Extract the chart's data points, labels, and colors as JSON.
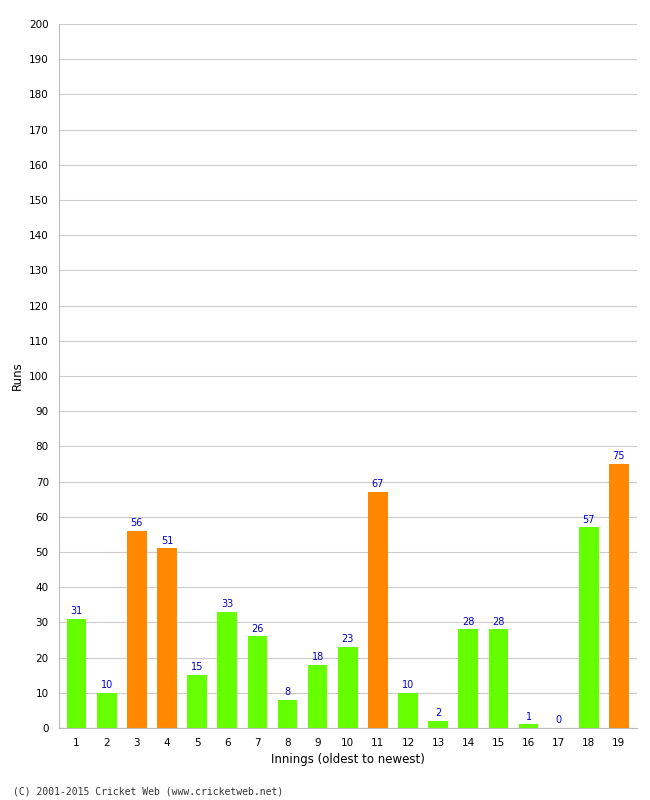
{
  "xlabel": "Innings (oldest to newest)",
  "ylabel": "Runs",
  "innings": [
    1,
    2,
    3,
    4,
    5,
    6,
    7,
    8,
    9,
    10,
    11,
    12,
    13,
    14,
    15,
    16,
    17,
    18,
    19
  ],
  "values": [
    31,
    10,
    56,
    51,
    15,
    33,
    26,
    8,
    18,
    23,
    67,
    10,
    2,
    28,
    28,
    1,
    0,
    57,
    75
  ],
  "colors": [
    "#66ff00",
    "#66ff00",
    "#ff8800",
    "#ff8800",
    "#66ff00",
    "#66ff00",
    "#66ff00",
    "#66ff00",
    "#66ff00",
    "#66ff00",
    "#ff8800",
    "#66ff00",
    "#66ff00",
    "#66ff00",
    "#66ff00",
    "#66ff00",
    "#66ff00",
    "#66ff00",
    "#ff8800"
  ],
  "ylim": [
    0,
    200
  ],
  "yticks": [
    0,
    10,
    20,
    30,
    40,
    50,
    60,
    70,
    80,
    90,
    100,
    110,
    120,
    130,
    140,
    150,
    160,
    170,
    180,
    190,
    200
  ],
  "value_label_color": "#0000cc",
  "value_label_fontsize": 7.0,
  "axis_label_fontsize": 8.5,
  "tick_label_fontsize": 7.5,
  "background_color": "#ffffff",
  "grid_color": "#cccccc",
  "footer": "(C) 2001-2015 Cricket Web (www.cricketweb.net)"
}
